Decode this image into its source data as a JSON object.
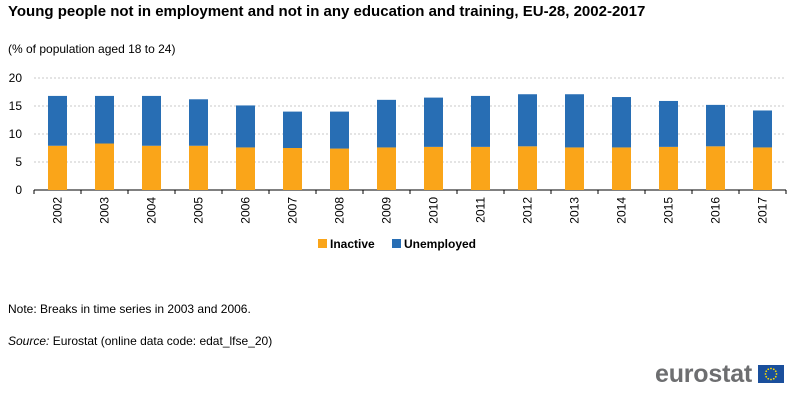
{
  "title": "Young people not in employment and not in any education and training, EU-28, 2002-2017",
  "subtitle": "(% of population aged 18 to 24)",
  "note": "Note: Breaks in time series in 2003 and 2006.",
  "source": {
    "label": "Source:",
    "text": "Eurostat (online data code: edat_lfse_20)"
  },
  "logo": {
    "text": "eurostat"
  },
  "colors": {
    "inactive": "#faa519",
    "unemployed": "#286eb4",
    "grid": "#c8c8c8"
  },
  "chart_data": {
    "type": "bar",
    "stacked": true,
    "categories": [
      "2002",
      "2003",
      "2004",
      "2005",
      "2006",
      "2007",
      "2008",
      "2009",
      "2010",
      "2011",
      "2012",
      "2013",
      "2014",
      "2015",
      "2016",
      "2017"
    ],
    "series": [
      {
        "name": "Inactive",
        "values": [
          7.9,
          8.3,
          7.9,
          7.9,
          7.6,
          7.5,
          7.4,
          7.6,
          7.7,
          7.7,
          7.8,
          7.6,
          7.6,
          7.7,
          7.8,
          7.6
        ]
      },
      {
        "name": "Unemployed",
        "values": [
          8.9,
          8.5,
          8.9,
          8.3,
          7.5,
          6.5,
          6.6,
          8.5,
          8.8,
          9.1,
          9.3,
          9.5,
          9.0,
          8.2,
          7.4,
          6.6
        ]
      }
    ],
    "ylim": [
      0,
      20
    ],
    "yticks": [
      0,
      5,
      10,
      15,
      20
    ],
    "grid": true,
    "legend": "bottom"
  }
}
